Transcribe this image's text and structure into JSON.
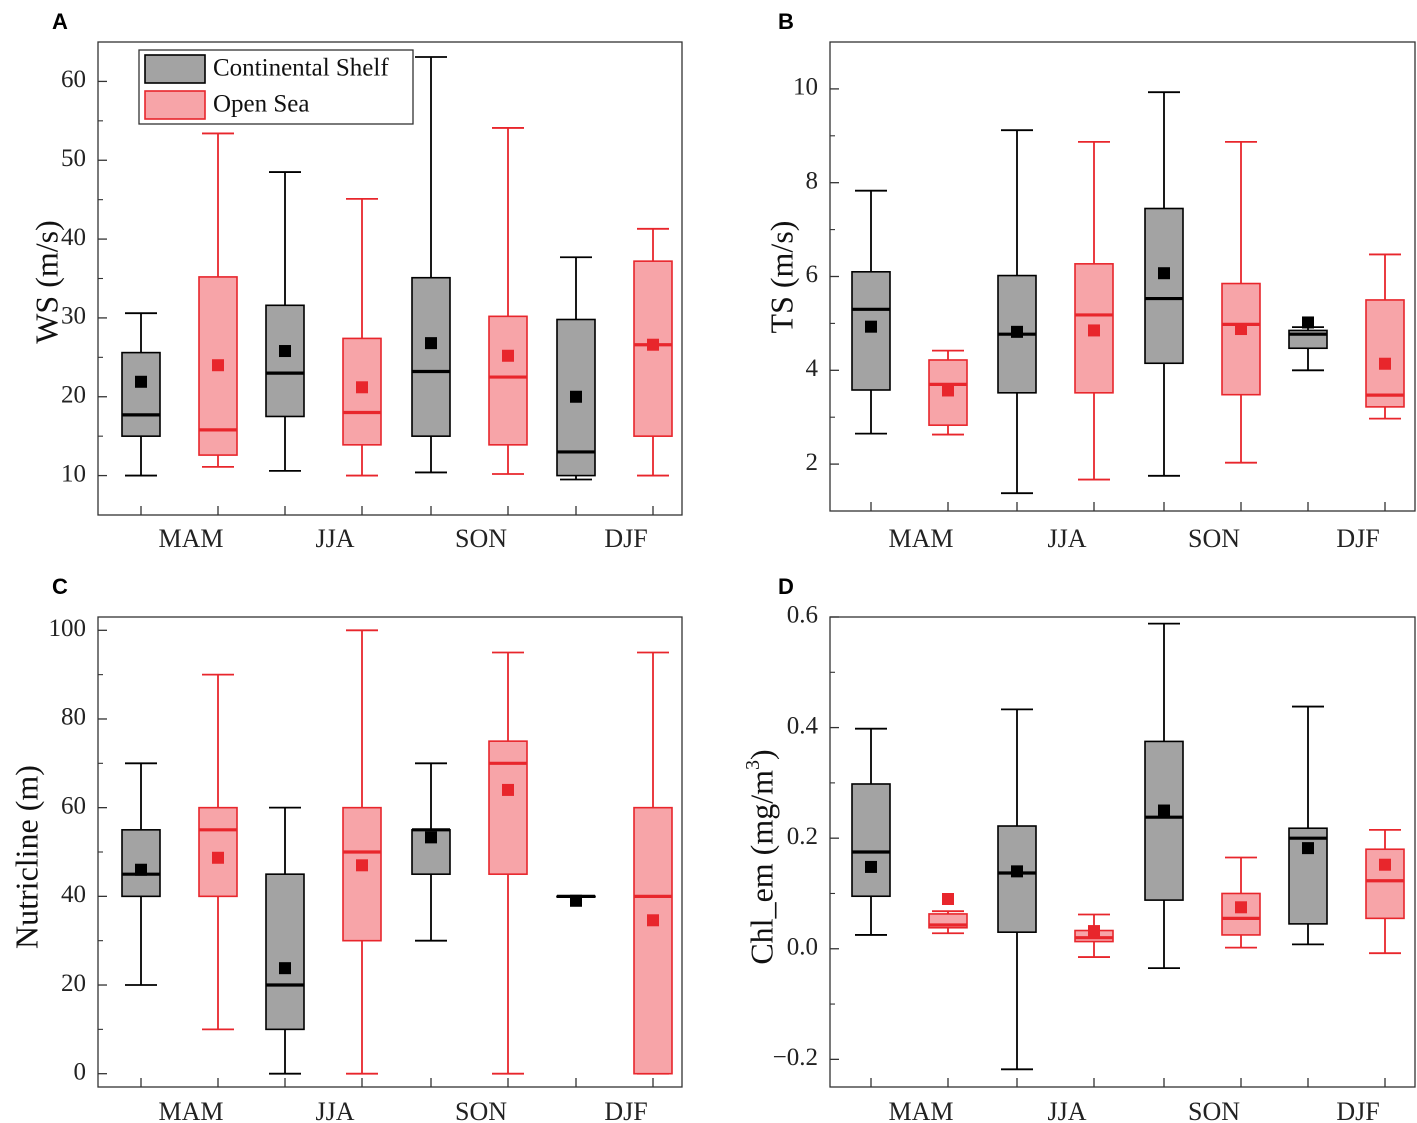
{
  "legend": {
    "items": [
      {
        "label": "Continental Shelf",
        "fill": "#a3a3a3",
        "line": "#000000"
      },
      {
        "label": "Open Sea",
        "fill": "#f7a4a8",
        "line": "#e8262c"
      }
    ]
  },
  "chart_data": [
    {
      "type": "box",
      "panel": "A",
      "ylabel": "WS (m/s)",
      "ylim": [
        5,
        65
      ],
      "yticks": [
        10,
        20,
        30,
        40,
        50,
        60
      ],
      "categories": [
        "MAM",
        "JJA",
        "SON",
        "DJF"
      ],
      "series": [
        {
          "name": "Continental Shelf",
          "boxes": [
            {
              "min": 10,
              "q1": 15,
              "median": 17.7,
              "q3": 25.6,
              "max": 30.6,
              "mean": 21.9
            },
            {
              "min": 10.6,
              "q1": 17.5,
              "median": 23,
              "q3": 31.6,
              "max": 48.5,
              "mean": 25.8
            },
            {
              "min": 10.4,
              "q1": 15,
              "median": 23.2,
              "q3": 35.1,
              "max": 63.1,
              "mean": 26.8
            },
            {
              "min": 9.5,
              "q1": 10,
              "median": 13,
              "q3": 29.8,
              "max": 37.7,
              "mean": 20
            }
          ]
        },
        {
          "name": "Open Sea",
          "boxes": [
            {
              "min": 11.1,
              "q1": 12.6,
              "median": 15.8,
              "q3": 35.2,
              "max": 53.4,
              "mean": 24
            },
            {
              "min": 10,
              "q1": 13.9,
              "median": 18,
              "q3": 27.4,
              "max": 45.1,
              "mean": 21.2
            },
            {
              "min": 10.2,
              "q1": 13.9,
              "median": 22.5,
              "q3": 30.2,
              "max": 54.1,
              "mean": 25.2
            },
            {
              "min": 10,
              "q1": 15,
              "median": 26.6,
              "q3": 37.2,
              "max": 41.3,
              "mean": 26.6
            }
          ]
        }
      ]
    },
    {
      "type": "box",
      "panel": "B",
      "ylabel": "TS (m/s)",
      "ylim": [
        1,
        11
      ],
      "yticks": [
        2,
        4,
        6,
        8,
        10
      ],
      "categories": [
        "MAM",
        "JJA",
        "SON",
        "DJF"
      ],
      "series": [
        {
          "name": "Continental Shelf",
          "boxes": [
            {
              "min": 2.65,
              "q1": 3.58,
              "median": 5.3,
              "q3": 6.1,
              "max": 7.83,
              "mean": 4.93
            },
            {
              "min": 1.38,
              "q1": 3.52,
              "median": 4.77,
              "q3": 6.02,
              "max": 9.12,
              "mean": 4.82
            },
            {
              "min": 1.75,
              "q1": 4.15,
              "median": 5.53,
              "q3": 7.45,
              "max": 9.93,
              "mean": 6.07
            },
            {
              "min": 4.0,
              "q1": 4.47,
              "median": 4.77,
              "q3": 4.85,
              "max": 4.92,
              "mean": 5.02
            }
          ]
        },
        {
          "name": "Open Sea",
          "boxes": [
            {
              "min": 2.63,
              "q1": 2.83,
              "median": 3.7,
              "q3": 4.22,
              "max": 4.42,
              "mean": 3.57
            },
            {
              "min": 1.67,
              "q1": 3.52,
              "median": 5.18,
              "q3": 6.27,
              "max": 8.87,
              "mean": 4.85
            },
            {
              "min": 2.03,
              "q1": 3.48,
              "median": 4.98,
              "q3": 5.85,
              "max": 8.87,
              "mean": 4.88
            },
            {
              "min": 2.97,
              "q1": 3.22,
              "median": 3.47,
              "q3": 5.5,
              "max": 6.47,
              "mean": 4.14
            }
          ]
        }
      ]
    },
    {
      "type": "box",
      "panel": "C",
      "ylabel": "Nutricline (m)",
      "ylim": [
        -3,
        103
      ],
      "yticks": [
        0,
        20,
        40,
        60,
        80,
        100
      ],
      "categories": [
        "MAM",
        "JJA",
        "SON",
        "DJF"
      ],
      "series": [
        {
          "name": "Continental Shelf",
          "boxes": [
            {
              "min": 20,
              "q1": 40,
              "median": 45,
              "q3": 55,
              "max": 70,
              "mean": 46
            },
            {
              "min": 0,
              "q1": 10,
              "median": 20,
              "q3": 45,
              "max": 60,
              "mean": 23.8
            },
            {
              "min": 30,
              "q1": 45,
              "median": 55,
              "q3": 55,
              "max": 70,
              "mean": 53.3
            },
            {
              "min": 40,
              "q1": 40,
              "median": 40,
              "q3": 40,
              "max": 40,
              "mean": 39
            }
          ]
        },
        {
          "name": "Open Sea",
          "boxes": [
            {
              "min": 10,
              "q1": 40,
              "median": 55,
              "q3": 60,
              "max": 90,
              "mean": 48.7
            },
            {
              "min": 0,
              "q1": 30,
              "median": 50,
              "q3": 60,
              "max": 100,
              "mean": 47
            },
            {
              "min": 0,
              "q1": 45,
              "median": 70,
              "q3": 75,
              "max": 95,
              "mean": 64
            },
            {
              "min": 0,
              "q1": 0,
              "median": 40,
              "q3": 60,
              "max": 95,
              "mean": 34.6
            }
          ]
        }
      ]
    },
    {
      "type": "box",
      "panel": "D",
      "ylabel": "Chl_em (mg/m³)",
      "ylabel_text": "Chl_em (mg/m",
      "ylabel_sup": "3",
      "ylabel_close": ")",
      "ylim": [
        -0.25,
        0.6
      ],
      "yticks": [
        -0.2,
        0.0,
        0.2,
        0.4,
        0.6
      ],
      "ytick_labels": [
        "−0.2",
        "0.0",
        "0.2",
        "0.4",
        "0.6"
      ],
      "categories": [
        "MAM",
        "JJA",
        "SON",
        "DJF"
      ],
      "series": [
        {
          "name": "Continental Shelf",
          "boxes": [
            {
              "min": 0.025,
              "q1": 0.095,
              "median": 0.175,
              "q3": 0.298,
              "max": 0.398,
              "mean": 0.148
            },
            {
              "min": -0.218,
              "q1": 0.03,
              "median": 0.137,
              "q3": 0.222,
              "max": 0.433,
              "mean": 0.14
            },
            {
              "min": -0.035,
              "q1": 0.088,
              "median": 0.238,
              "q3": 0.375,
              "max": 0.588,
              "mean": 0.25
            },
            {
              "min": 0.008,
              "q1": 0.045,
              "median": 0.2,
              "q3": 0.218,
              "max": 0.438,
              "mean": 0.182
            }
          ]
        },
        {
          "name": "Open Sea",
          "boxes": [
            {
              "min": 0.028,
              "q1": 0.038,
              "median": 0.043,
              "q3": 0.063,
              "max": 0.068,
              "mean": 0.09
            },
            {
              "min": -0.015,
              "q1": 0.013,
              "median": 0.02,
              "q3": 0.033,
              "max": 0.062,
              "mean": 0.032
            },
            {
              "min": 0.002,
              "q1": 0.025,
              "median": 0.055,
              "q3": 0.1,
              "max": 0.165,
              "mean": 0.075
            },
            {
              "min": -0.008,
              "q1": 0.055,
              "median": 0.123,
              "q3": 0.18,
              "max": 0.215,
              "mean": 0.152
            }
          ]
        }
      ]
    }
  ]
}
